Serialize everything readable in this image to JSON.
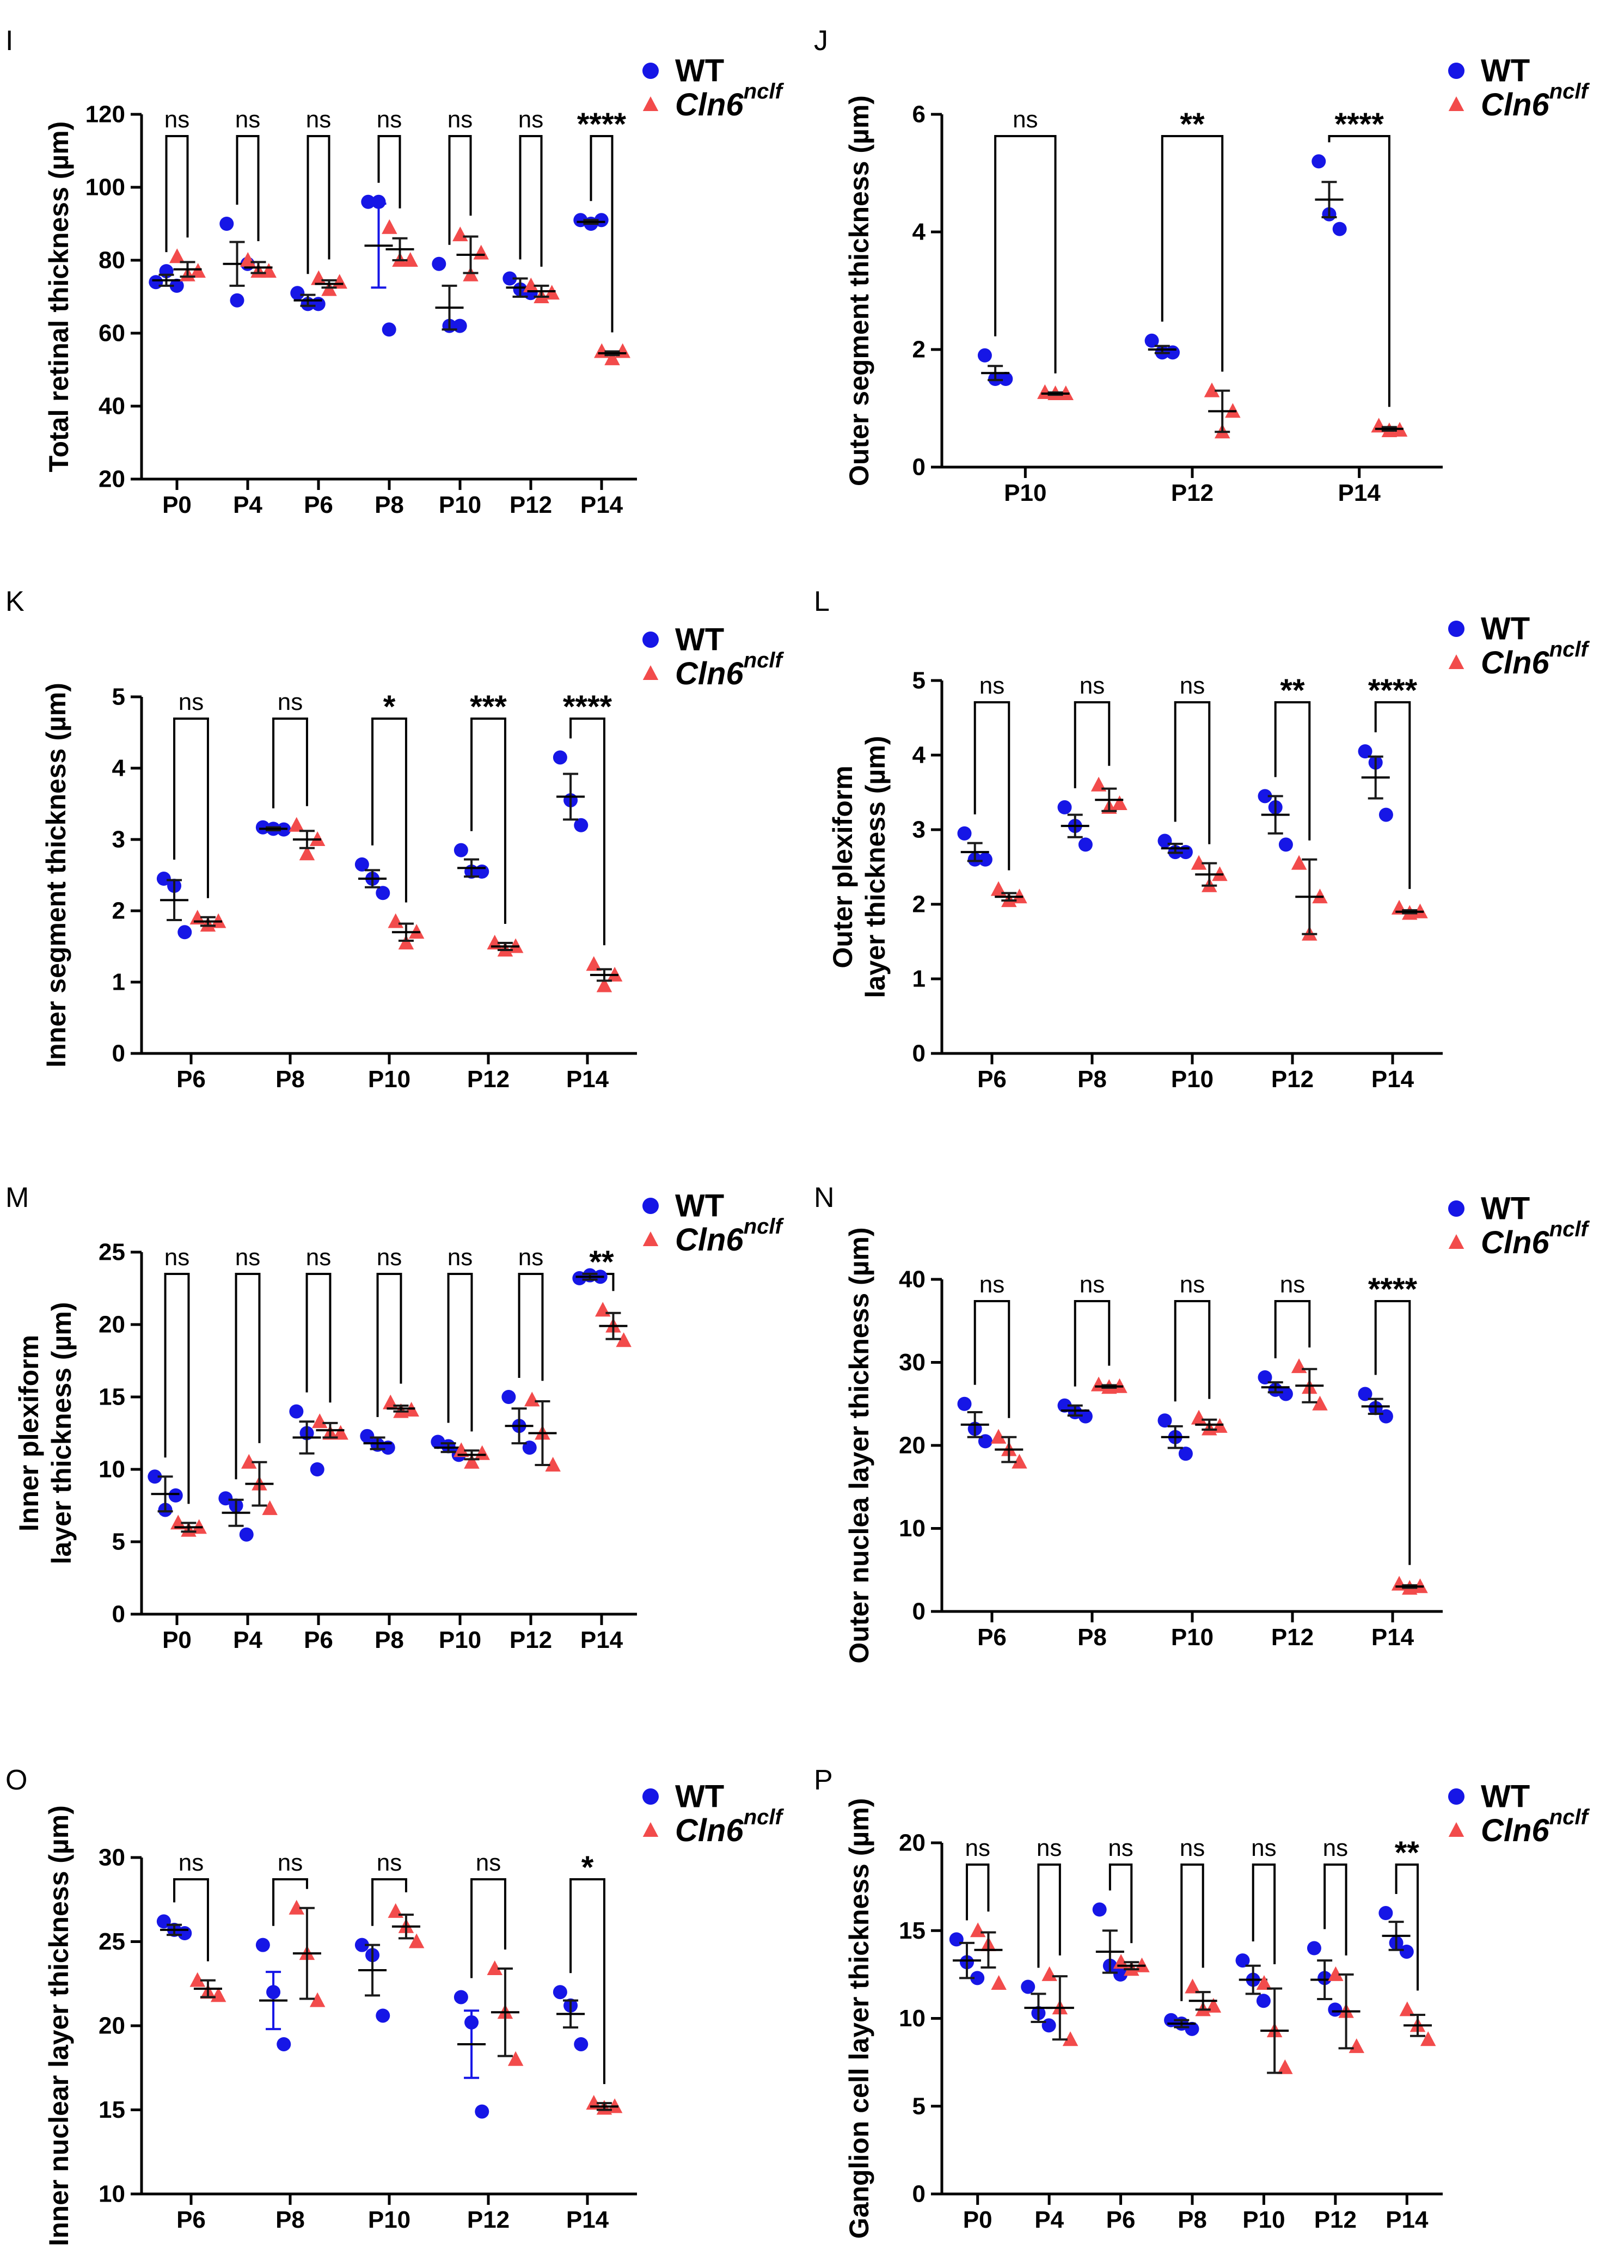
{
  "legend": {
    "wt": "WT",
    "mut_base": "Cln6",
    "mut_sup": "nclf"
  },
  "colors": {
    "wt": "#1616e6",
    "mut": "#f24b4b",
    "axis": "#000000",
    "sig": "#000000",
    "err_wt": "#1616e6"
  },
  "chart_data": [
    {
      "id": "I",
      "panel_label": "I",
      "type": "scatter",
      "ylabel": "Total retinal thickness (µm)",
      "ylim": [
        20,
        120
      ],
      "yticks": [
        20,
        40,
        60,
        80,
        100,
        120
      ],
      "categories": [
        "P0",
        "P4",
        "P6",
        "P8",
        "P10",
        "P12",
        "P14"
      ],
      "significance": [
        "ns",
        "ns",
        "ns",
        "ns",
        "ns",
        "ns",
        "****"
      ],
      "series": [
        {
          "name": "WT",
          "marker": "circle",
          "mean": [
            74.5,
            79,
            69,
            84,
            67,
            72.5,
            90.5
          ],
          "err": [
            1.5,
            6,
            1.5,
            11.5,
            6,
            2.5,
            0.5
          ],
          "points": [
            [
              74,
              77,
              73
            ],
            [
              90,
              69,
              79
            ],
            [
              71,
              68,
              68
            ],
            [
              96,
              96,
              61
            ],
            [
              79,
              62,
              62
            ],
            [
              75,
              72,
              71
            ],
            [
              91,
              90,
              91
            ]
          ]
        },
        {
          "name": "Cln6 nclf",
          "marker": "triangle",
          "mean": [
            77.5,
            78,
            73.5,
            83,
            81.5,
            71.5,
            54.5
          ],
          "err": [
            2,
            1.5,
            1,
            3,
            5,
            1.5,
            0.5
          ],
          "points": [
            [
              81,
              76,
              77
            ],
            [
              80,
              77,
              77
            ],
            [
              75,
              72,
              74
            ],
            [
              89,
              80,
              80
            ],
            [
              87,
              76,
              82
            ],
            [
              73,
              70,
              71
            ],
            [
              55,
              53,
              55
            ]
          ]
        }
      ]
    },
    {
      "id": "J",
      "panel_label": "J",
      "type": "scatter",
      "ylabel": "Outer segment thickness (µm)",
      "ylim": [
        0,
        6
      ],
      "yticks": [
        0,
        2,
        4,
        6
      ],
      "categories": [
        "P10",
        "P12",
        "P14"
      ],
      "significance": [
        "ns",
        "**",
        "****"
      ],
      "series": [
        {
          "name": "WT",
          "marker": "circle",
          "mean": [
            1.6,
            2.0,
            4.55
          ],
          "err": [
            0.12,
            0.06,
            0.3
          ],
          "points": [
            [
              1.9,
              1.5,
              1.5
            ],
            [
              2.15,
              1.95,
              1.95
            ],
            [
              5.2,
              4.3,
              4.05
            ]
          ]
        },
        {
          "name": "Cln6 nclf",
          "marker": "triangle",
          "mean": [
            1.25,
            0.95,
            0.65
          ],
          "err": [
            0.02,
            0.35,
            0.03
          ],
          "points": [
            [
              1.27,
              1.25,
              1.25
            ],
            [
              1.3,
              0.6,
              0.95
            ],
            [
              0.7,
              0.62,
              0.63
            ]
          ]
        }
      ]
    },
    {
      "id": "K",
      "panel_label": "K",
      "type": "scatter",
      "ylabel": "Inner segment thickness (µm)",
      "ylim": [
        0,
        5
      ],
      "yticks": [
        0,
        1,
        2,
        3,
        4,
        5
      ],
      "categories": [
        "P6",
        "P8",
        "P10",
        "P12",
        "P14"
      ],
      "significance": [
        "ns",
        "ns",
        "*",
        "***",
        "****"
      ],
      "series": [
        {
          "name": "WT",
          "marker": "circle",
          "mean": [
            2.15,
            3.15,
            2.45,
            2.6,
            3.6
          ],
          "err": [
            0.28,
            0.02,
            0.12,
            0.12,
            0.32
          ],
          "points": [
            [
              2.45,
              2.35,
              1.7
            ],
            [
              3.17,
              3.15,
              3.14
            ],
            [
              2.65,
              2.45,
              2.25
            ],
            [
              2.85,
              2.55,
              2.55
            ],
            [
              4.15,
              3.55,
              3.2
            ]
          ]
        },
        {
          "name": "Cln6 nclf",
          "marker": "triangle",
          "mean": [
            1.85,
            3.0,
            1.7,
            1.5,
            1.1
          ],
          "err": [
            0.06,
            0.12,
            0.12,
            0.05,
            0.08
          ],
          "points": [
            [
              1.9,
              1.8,
              1.85
            ],
            [
              3.2,
              2.8,
              3.0
            ],
            [
              1.85,
              1.55,
              1.7
            ],
            [
              1.55,
              1.45,
              1.5
            ],
            [
              1.25,
              0.95,
              1.1
            ]
          ]
        }
      ]
    },
    {
      "id": "L",
      "panel_label": "L",
      "type": "scatter",
      "ylabel": "Outer plexiform",
      "ylabel2": "layer thickness (µm)",
      "ylim": [
        0,
        5
      ],
      "yticks": [
        0,
        1,
        2,
        3,
        4,
        5
      ],
      "categories": [
        "P6",
        "P8",
        "P10",
        "P12",
        "P14"
      ],
      "significance": [
        "ns",
        "ns",
        "ns",
        "**",
        "****"
      ],
      "series": [
        {
          "name": "WT",
          "marker": "circle",
          "mean": [
            2.7,
            3.05,
            2.75,
            3.2,
            3.7
          ],
          "err": [
            0.12,
            0.15,
            0.06,
            0.25,
            0.28
          ],
          "points": [
            [
              2.95,
              2.6,
              2.6
            ],
            [
              3.3,
              3.05,
              2.8
            ],
            [
              2.85,
              2.7,
              2.7
            ],
            [
              3.45,
              3.3,
              2.8
            ],
            [
              4.05,
              3.9,
              3.2
            ]
          ]
        },
        {
          "name": "Cln6 nclf",
          "marker": "triangle",
          "mean": [
            2.1,
            3.4,
            2.4,
            2.1,
            1.9
          ],
          "err": [
            0.05,
            0.15,
            0.15,
            0.5,
            0.02
          ],
          "points": [
            [
              2.2,
              2.05,
              2.1
            ],
            [
              3.6,
              3.3,
              3.35
            ],
            [
              2.55,
              2.25,
              2.4
            ],
            [
              2.55,
              1.6,
              2.1
            ],
            [
              1.95,
              1.88,
              1.9
            ]
          ]
        }
      ]
    },
    {
      "id": "M",
      "panel_label": "M",
      "type": "scatter",
      "ylabel": "Inner plexiform",
      "ylabel2": "layer thickness (µm)",
      "ylim": [
        0,
        25
      ],
      "yticks": [
        0,
        5,
        10,
        15,
        20,
        25
      ],
      "categories": [
        "P0",
        "P4",
        "P6",
        "P8",
        "P10",
        "P12",
        "P14"
      ],
      "significance": [
        "ns",
        "ns",
        "ns",
        "ns",
        "ns",
        "ns",
        "**"
      ],
      "series": [
        {
          "name": "WT",
          "marker": "circle",
          "mean": [
            8.3,
            7.0,
            12.2,
            11.8,
            11.5,
            13.0,
            23.3
          ],
          "err": [
            1.2,
            0.9,
            1.1,
            0.4,
            0.3,
            1.2,
            0.2
          ],
          "points": [
            [
              9.5,
              7.2,
              8.2
            ],
            [
              8.0,
              7.5,
              5.5
            ],
            [
              14.0,
              12.5,
              10.0
            ],
            [
              12.3,
              11.7,
              11.5
            ],
            [
              11.9,
              11.6,
              11.0
            ],
            [
              15.0,
              13.0,
              11.5
            ],
            [
              23.2,
              23.4,
              23.3
            ]
          ]
        },
        {
          "name": "Cln6 nclf",
          "marker": "triangle",
          "mean": [
            6.0,
            9.0,
            12.7,
            14.2,
            11.0,
            12.5,
            19.9
          ],
          "err": [
            0.3,
            1.5,
            0.5,
            0.2,
            0.3,
            2.2,
            0.9
          ],
          "points": [
            [
              6.3,
              5.8,
              6.0
            ],
            [
              10.5,
              9.0,
              7.3
            ],
            [
              13.3,
              12.5,
              12.5
            ],
            [
              14.6,
              14.0,
              14.1
            ],
            [
              11.3,
              10.5,
              11.1
            ],
            [
              14.8,
              12.5,
              10.3
            ],
            [
              21.0,
              19.9,
              18.9
            ]
          ]
        }
      ]
    },
    {
      "id": "N",
      "panel_label": "N",
      "type": "scatter",
      "ylabel": "Outer nuclea layer thickness (µm)",
      "ylim": [
        0,
        40
      ],
      "yticks": [
        0,
        10,
        20,
        30,
        40
      ],
      "categories": [
        "P6",
        "P8",
        "P10",
        "P12",
        "P14"
      ],
      "significance": [
        "ns",
        "ns",
        "ns",
        "ns",
        "****"
      ],
      "series": [
        {
          "name": "WT",
          "marker": "circle",
          "mean": [
            22.5,
            24.2,
            21.0,
            27.0,
            24.7
          ],
          "err": [
            1.5,
            0.6,
            1.3,
            0.6,
            0.9
          ],
          "points": [
            [
              25.0,
              22.0,
              20.5
            ],
            [
              24.8,
              24.0,
              23.5
            ],
            [
              23.0,
              21.0,
              19.0
            ],
            [
              28.2,
              26.7,
              26.2
            ],
            [
              26.2,
              24.5,
              23.5
            ]
          ]
        },
        {
          "name": "Cln6 nclf",
          "marker": "triangle",
          "mean": [
            19.5,
            27.1,
            22.5,
            27.2,
            3.0
          ],
          "err": [
            1.5,
            0.15,
            0.6,
            2.0,
            0.15
          ],
          "points": [
            [
              21.0,
              19.5,
              18.0
            ],
            [
              27.3,
              27.0,
              27.1
            ],
            [
              23.3,
              22.0,
              22.3
            ],
            [
              29.5,
              27.0,
              25.0
            ],
            [
              3.3,
              2.8,
              3.0
            ]
          ]
        }
      ]
    },
    {
      "id": "O",
      "panel_label": "O",
      "type": "scatter",
      "ylabel": "Inner nuclear layer thickness (µm)",
      "ylim": [
        10,
        30
      ],
      "yticks": [
        10,
        15,
        20,
        25,
        30
      ],
      "categories": [
        "P6",
        "P8",
        "P10",
        "P12",
        "P14"
      ],
      "significance": [
        "ns",
        "ns",
        "ns",
        "ns",
        "*"
      ],
      "series": [
        {
          "name": "WT",
          "marker": "circle",
          "mean": [
            25.7,
            21.5,
            23.3,
            18.9,
            20.7
          ],
          "err": [
            0.3,
            1.7,
            1.5,
            2.0,
            0.8
          ],
          "points": [
            [
              26.2,
              25.7,
              25.5
            ],
            [
              24.8,
              22.0,
              18.9
            ],
            [
              24.8,
              24.2,
              20.6
            ],
            [
              21.7,
              20.2,
              14.9
            ],
            [
              22.0,
              21.2,
              18.9
            ]
          ]
        },
        {
          "name": "Cln6 nclf",
          "marker": "triangle",
          "mean": [
            22.2,
            24.3,
            25.9,
            20.8,
            15.2
          ],
          "err": [
            0.5,
            2.7,
            0.7,
            2.6,
            0.2
          ],
          "points": [
            [
              22.7,
              22.0,
              21.8
            ],
            [
              27.0,
              24.3,
              21.5
            ],
            [
              26.8,
              25.9,
              25.0
            ],
            [
              23.4,
              20.8,
              18.0
            ],
            [
              15.4,
              15.1,
              15.2
            ]
          ]
        }
      ]
    },
    {
      "id": "P",
      "panel_label": "P",
      "type": "scatter",
      "ylabel": "Ganglion cell layer thickness (µm)",
      "ylim": [
        0,
        20
      ],
      "yticks": [
        0,
        5,
        10,
        15,
        20
      ],
      "categories": [
        "P0",
        "P4",
        "P6",
        "P8",
        "P10",
        "P12",
        "P14"
      ],
      "significance": [
        "ns",
        "ns",
        "ns",
        "ns",
        "ns",
        "ns",
        "**"
      ],
      "series": [
        {
          "name": "WT",
          "marker": "circle",
          "mean": [
            13.3,
            10.6,
            13.8,
            9.7,
            12.2,
            12.2,
            14.7
          ],
          "err": [
            1.0,
            0.8,
            1.2,
            0.2,
            0.8,
            1.1,
            0.8
          ],
          "points": [
            [
              14.5,
              13.2,
              12.3
            ],
            [
              11.8,
              10.3,
              9.6
            ],
            [
              16.2,
              13.0,
              12.5
            ],
            [
              9.9,
              9.7,
              9.4
            ],
            [
              13.3,
              12.2,
              11.0
            ],
            [
              14.0,
              12.3,
              10.5
            ],
            [
              16.0,
              14.3,
              13.8
            ]
          ]
        },
        {
          "name": "Cln6 nclf",
          "marker": "triangle",
          "mean": [
            13.9,
            10.6,
            13.0,
            11.0,
            9.3,
            10.4,
            9.6
          ],
          "err": [
            1.0,
            1.8,
            0.2,
            0.5,
            2.4,
            2.1,
            0.6
          ],
          "points": [
            [
              15.0,
              14.2,
              12.0
            ],
            [
              12.5,
              10.6,
              8.8
            ],
            [
              13.2,
              12.8,
              13.0
            ],
            [
              11.8,
              10.5,
              10.7
            ],
            [
              12.0,
              9.3,
              7.2
            ],
            [
              12.5,
              10.4,
              8.4
            ],
            [
              10.5,
              9.6,
              8.8
            ]
          ]
        }
      ]
    }
  ]
}
